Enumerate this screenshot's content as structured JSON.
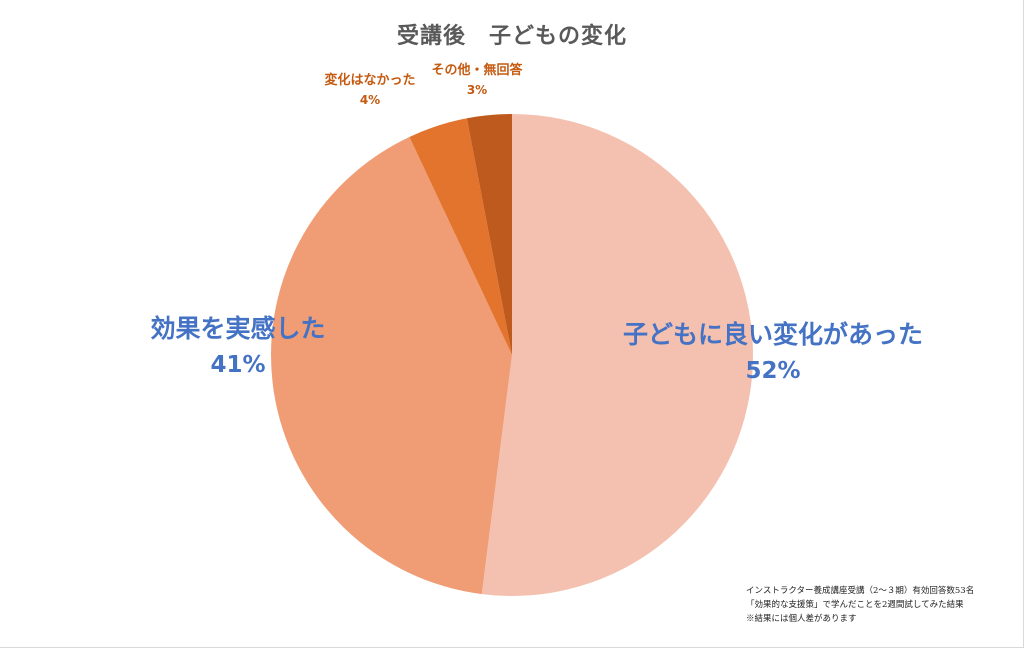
{
  "chart_data": {
    "type": "pie",
    "title": "受講後　子どもの変化",
    "categories": [
      "子どもに良い変化があった",
      "効果を実感した",
      "変化はなかった",
      "その他・無回答"
    ],
    "values": [
      52,
      41,
      4,
      3
    ],
    "value_labels": [
      "52%",
      "41%",
      "4%",
      "3%"
    ],
    "colors": [
      "#f4c1b0",
      "#f09c74",
      "#e2742d",
      "#bf5a1e"
    ],
    "start_angle_deg": 0,
    "direction": "clockwise",
    "legend": "none"
  },
  "footnote": {
    "lines": [
      "インストラクター養成講座受講（2～３期）有効回答数53名",
      "「効果的な支援策」で学んだことを2週間試してみた結果",
      "※結果には個人差があります"
    ]
  }
}
